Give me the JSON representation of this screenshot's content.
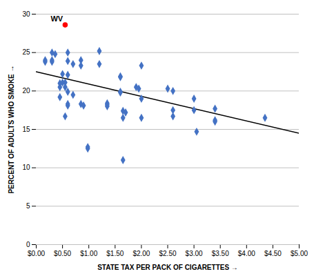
{
  "chart_data": {
    "type": "scatter",
    "xlabel": "STATE TAX PER PACK OF CIGARETTES",
    "ylabel": "PERCENT OF ADULTS WHO SMOKE",
    "xlim": [
      0,
      5.0
    ],
    "ylim": [
      0,
      30
    ],
    "xticks": [
      {
        "value": 0.0,
        "label": "$0.00"
      },
      {
        "value": 0.5,
        "label": "$0.50"
      },
      {
        "value": 1.0,
        "label": "$1.00"
      },
      {
        "value": 1.5,
        "label": "$1.50"
      },
      {
        "value": 2.0,
        "label": "$2.00"
      },
      {
        "value": 2.5,
        "label": "$2.50"
      },
      {
        "value": 3.0,
        "label": "$3.00"
      },
      {
        "value": 3.5,
        "label": "$3.50"
      },
      {
        "value": 4.0,
        "label": "$4.00"
      },
      {
        "value": 4.5,
        "label": "$4.50"
      },
      {
        "value": 5.0,
        "label": "$5.00"
      }
    ],
    "yticks": [
      0,
      5,
      10,
      15,
      20,
      25,
      30
    ],
    "grid": "y",
    "series": [
      {
        "type": "scatter",
        "color": "#4472C4",
        "marker": "diamond",
        "x": [
          0.17,
          0.17,
          0.3,
          0.3,
          0.3,
          0.36,
          0.45,
          0.45,
          0.45,
          0.5,
          0.5,
          0.55,
          0.55,
          0.55,
          0.6,
          0.6,
          0.6,
          0.6,
          0.6,
          0.6,
          0.7,
          0.7,
          0.85,
          0.85,
          0.85,
          0.9,
          0.98,
          0.98,
          1.2,
          1.2,
          1.35,
          1.35,
          1.35,
          1.6,
          1.6,
          1.6,
          1.6,
          1.65,
          1.65,
          1.65,
          1.7,
          1.9,
          1.95,
          2.0,
          2.0,
          2.0,
          2.5,
          2.6,
          2.6,
          2.6,
          3.0,
          3.0,
          3.05,
          3.4,
          3.4,
          3.4,
          4.35
        ],
        "values": [
          24.0,
          23.8,
          25.0,
          24.0,
          23.8,
          24.8,
          21.0,
          20.5,
          19.2,
          22.2,
          21.1,
          21.1,
          20.5,
          16.7,
          25.0,
          23.9,
          22.1,
          19.9,
          18.3,
          18.1,
          23.5,
          19.5,
          24.0,
          23.3,
          18.3,
          18.1,
          12.7,
          12.5,
          25.2,
          23.5,
          18.4,
          18.2,
          18.0,
          21.9,
          21.8,
          19.9,
          19.8,
          17.4,
          16.5,
          11.0,
          17.2,
          20.5,
          20.3,
          23.3,
          19.0,
          16.5,
          20.3,
          20.0,
          17.5,
          16.7,
          19.0,
          17.5,
          14.7,
          17.7,
          16.2,
          16.0,
          16.5
        ]
      },
      {
        "type": "scatter",
        "color": "#FF0000",
        "marker": "circle",
        "x": [
          0.55
        ],
        "values": [
          28.6
        ]
      },
      {
        "type": "line",
        "color": "#000000",
        "x": [
          0.0,
          5.0
        ],
        "values": [
          22.5,
          14.5
        ]
      }
    ],
    "annotations": [
      {
        "text": "WV",
        "x": 0.55,
        "y": 28.6
      }
    ]
  }
}
